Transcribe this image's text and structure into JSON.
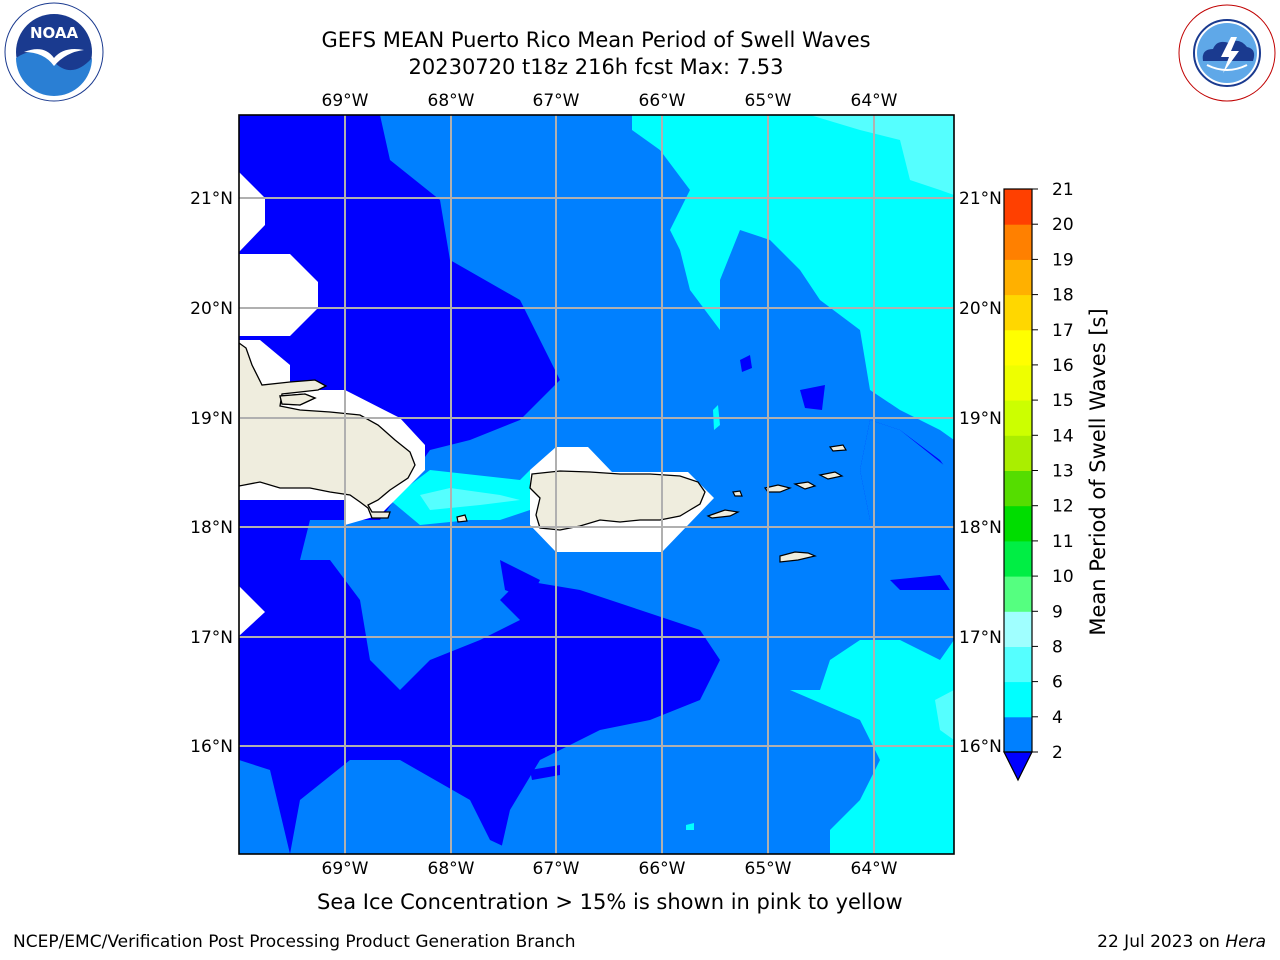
{
  "header": {
    "title_line1": "GEFS MEAN Puerto Rico Mean Period of Swell Waves",
    "title_line2": "20230720 t18z 216h fcst   Max: 7.53"
  },
  "logos": {
    "left": {
      "icon": "noaa-logo",
      "text": "NOAA"
    },
    "right": {
      "icon": "nws-logo",
      "text": "NATIONAL WEATHER SERVICE"
    }
  },
  "map": {
    "lon_ticks": [
      "69°W",
      "68°W",
      "67°W",
      "66°W",
      "65°W",
      "64°W"
    ],
    "lat_ticks": [
      "21°N",
      "20°N",
      "19°N",
      "18°N",
      "17°N",
      "16°N"
    ],
    "colors": {
      "band_2": "#0000ff",
      "band_4": "#0080ff",
      "band_6": "#00ffff",
      "band_8": "#55ffff",
      "land": "#efedde",
      "nodata": "#ffffff",
      "grid": "#b0b0b0"
    }
  },
  "colorbar": {
    "label": "Mean Period of Swell Waves [s]",
    "ticks": [
      "2",
      "4",
      "6",
      "8",
      "9",
      "10",
      "11",
      "12",
      "13",
      "14",
      "15",
      "16",
      "17",
      "18",
      "19",
      "20",
      "21"
    ],
    "colors": [
      "#0080ff",
      "#00ffff",
      "#55ffff",
      "#a0ffff",
      "#55ff80",
      "#00ee44",
      "#00dd00",
      "#55dd00",
      "#aaee00",
      "#ccff00",
      "#eeff00",
      "#ffff00",
      "#ffd700",
      "#ffb000",
      "#ff8000",
      "#ff4000",
      "#ff0000"
    ],
    "extend_color": "#0000ff"
  },
  "note": "Sea Ice Concentration > 15% is shown in pink to yellow",
  "footer": {
    "left": "NCEP/EMC/Verification Post Processing Product Generation Branch",
    "right_date": "22 Jul 2023 on ",
    "right_host": "Hera"
  }
}
